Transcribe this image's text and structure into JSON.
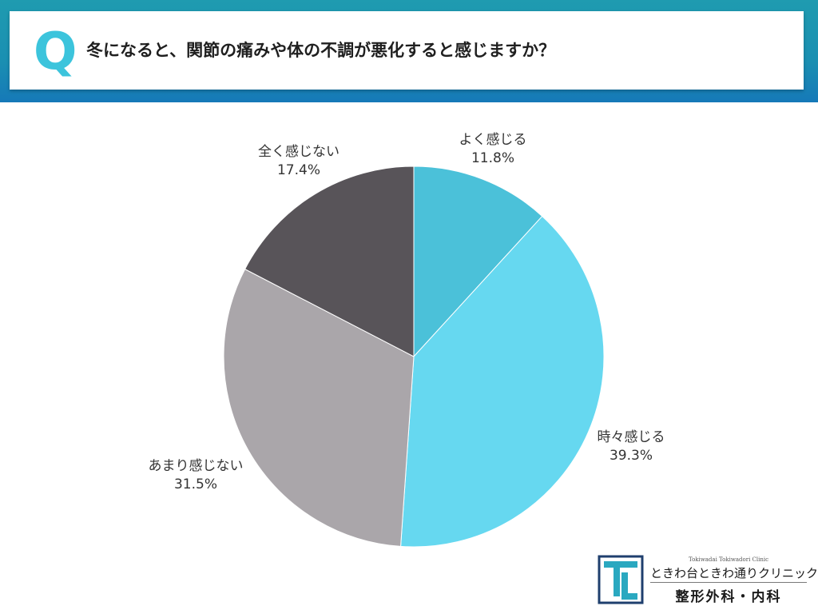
{
  "header": {
    "q_label": "Q",
    "question": "冬になると、関節の痛みや体の不調が悪化すると感じますか？"
  },
  "chart_data": {
    "type": "pie",
    "title": "",
    "slices": [
      {
        "label": "よく感じる",
        "value": 11.8,
        "value_label": "11.8%",
        "color": "#4bc1d9"
      },
      {
        "label": "時々感じる",
        "value": 39.3,
        "value_label": "39.3%",
        "color": "#66d8f0"
      },
      {
        "label": "あまり感じない",
        "value": 31.5,
        "value_label": "31.5%",
        "color": "#aaa6aa"
      },
      {
        "label": "全く感じない",
        "value": 17.4,
        "value_label": "17.4%",
        "color": "#585459"
      }
    ],
    "start": "12 o'clock",
    "direction": "clockwise",
    "legend": "none"
  },
  "logo": {
    "name_en": "Tokiwadai Tokiwadori Clinic",
    "name_jp": "ときわ台ときわ通りクリニック",
    "departments": "整形外科・内科",
    "colors": {
      "teal": "#2aa8c0",
      "navy": "#1f3f6e"
    }
  }
}
